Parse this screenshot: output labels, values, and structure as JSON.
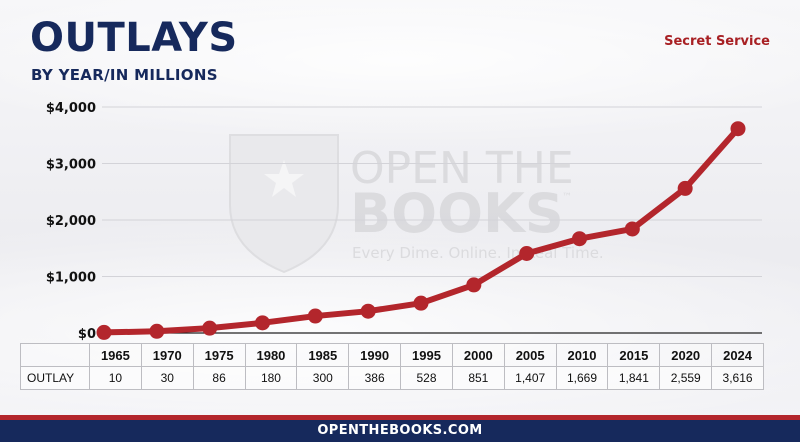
{
  "header": {
    "title": "OUTLAYS",
    "subtitle": "BY YEAR/IN MILLIONS",
    "agency": "Secret Service"
  },
  "watermark": {
    "line1": "OPEN THE",
    "line2": "BOOKS",
    "trademark": "™",
    "tagline": "Every Dime. Online. In Real Time."
  },
  "footer": {
    "text": "OPENTHEBOOKS.COM"
  },
  "colors": {
    "navy": "#16295c",
    "line": "#b3262c",
    "accent_red": "#a82024"
  },
  "chart_data": {
    "type": "line",
    "title": "OUTLAYS",
    "subtitle": "BY YEAR/IN MILLIONS",
    "categories": [
      "1965",
      "1970",
      "1975",
      "1980",
      "1985",
      "1990",
      "1995",
      "2000",
      "2005",
      "2010",
      "2015",
      "2020",
      "2024"
    ],
    "series": [
      {
        "values": [
          10,
          30,
          86,
          180,
          300,
          386,
          528,
          851,
          1407,
          1669,
          1841,
          2559,
          3616
        ]
      }
    ],
    "y_ticks": [
      "$0",
      "$1,000",
      "$2,000",
      "$3,000",
      "$4,000"
    ],
    "ylim": [
      0,
      4000
    ],
    "grid": true,
    "table": {
      "row_label": "OUTLAY",
      "values": [
        "10",
        "30",
        "86",
        "180",
        "300",
        "386",
        "528",
        "851",
        "1,407",
        "1,669",
        "1,841",
        "2,559",
        "3,616"
      ]
    }
  }
}
